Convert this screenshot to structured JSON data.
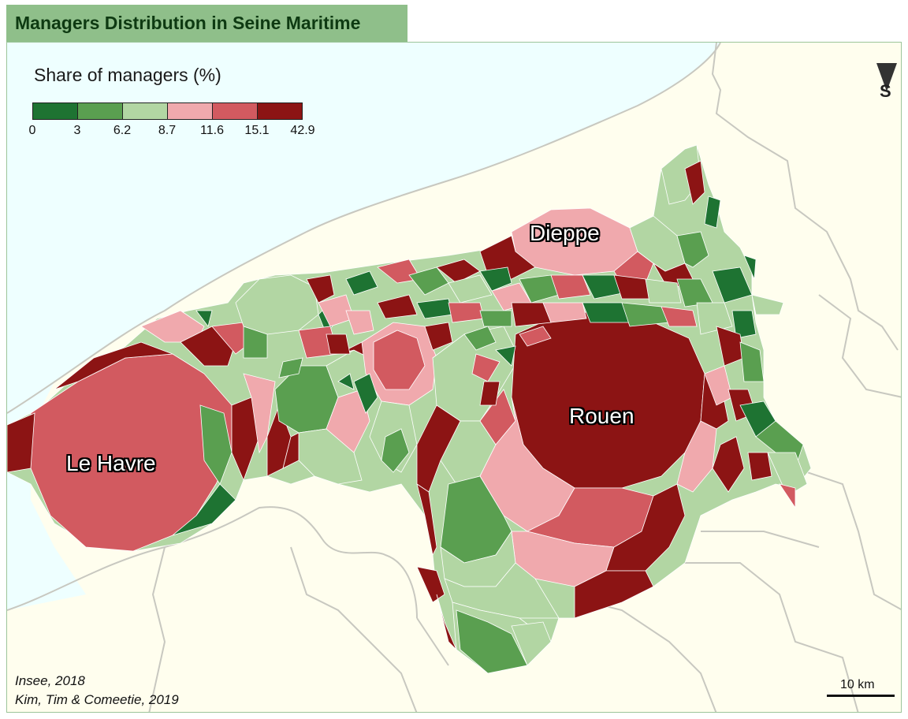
{
  "map": {
    "title": "Managers Distribution in Seine Maritime",
    "legend": {
      "title": "Share of managers (%)",
      "breaks": [
        "0",
        "3",
        "6.2",
        "8.7",
        "11.6",
        "15.1",
        "42.9"
      ],
      "colors": [
        "#1e7332",
        "#5a9f50",
        "#b2d6a3",
        "#f0a9ad",
        "#d25a60",
        "#8c1414"
      ]
    },
    "north_arrow": {
      "letter": "S"
    },
    "cities": {
      "le_havre": "Le Havre",
      "rouen": "Rouen",
      "dieppe": "Dieppe"
    },
    "sources": {
      "line1": "Insee, 2018",
      "line2": "Kim, Tim & Comeetie, 2019"
    },
    "scale_bar": {
      "label": "10 km"
    },
    "colors": {
      "sea": "#eeffff",
      "land": "#fffeee",
      "boundary": "#c8c8c0",
      "frame": "#9cc59a",
      "title_bg": "#8fbf8a",
      "title_text": "#0e3a12"
    }
  }
}
